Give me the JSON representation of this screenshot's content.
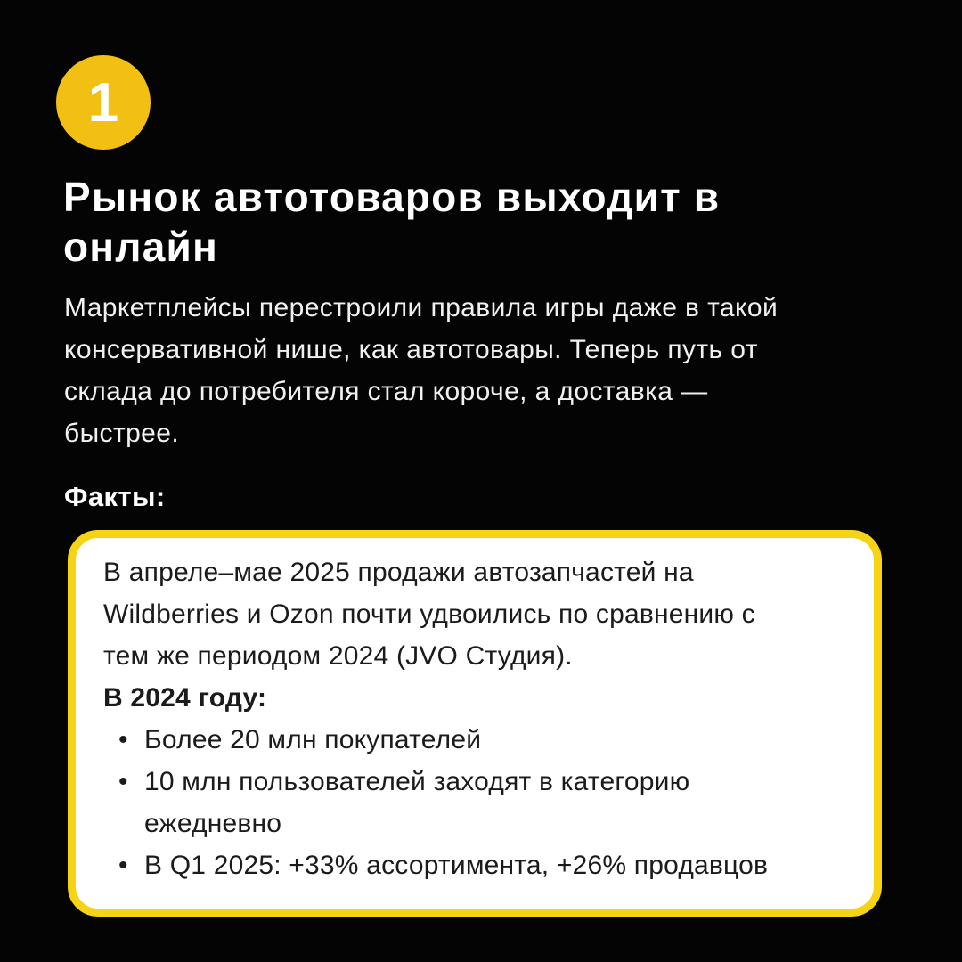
{
  "page": {
    "background_color": "#040404",
    "badge_color": "#F2C013",
    "box_border_color": "#F7D315",
    "box_background_color": "#FFFFFF"
  },
  "slide": {
    "number_badge": "1",
    "title": "Рынок автотоваров выходит в\nонлайн",
    "lead": "Маркетплейсы перестроили правила игры даже в такой\nконсервативной нише, как автотовары. Теперь путь от\nсклада до потребителя стал короче, а доставка —\nбыстрее.",
    "facts_label": "Факты:",
    "facts_box": {
      "paragraph": "В апреле–мае 2025 продажи автозапчастей на\nWildberries и Ozon почти удвоились по сравнению с\nтем же периодом 2024 (JVO Студия).",
      "subhead": "В 2024 году:",
      "bullets": [
        "Более 20 млн покупателей",
        "10 млн пользователей заходят в категорию\nежедневно",
        "В Q1 2025: +33% ассортимента, +26% продавцов"
      ]
    }
  }
}
